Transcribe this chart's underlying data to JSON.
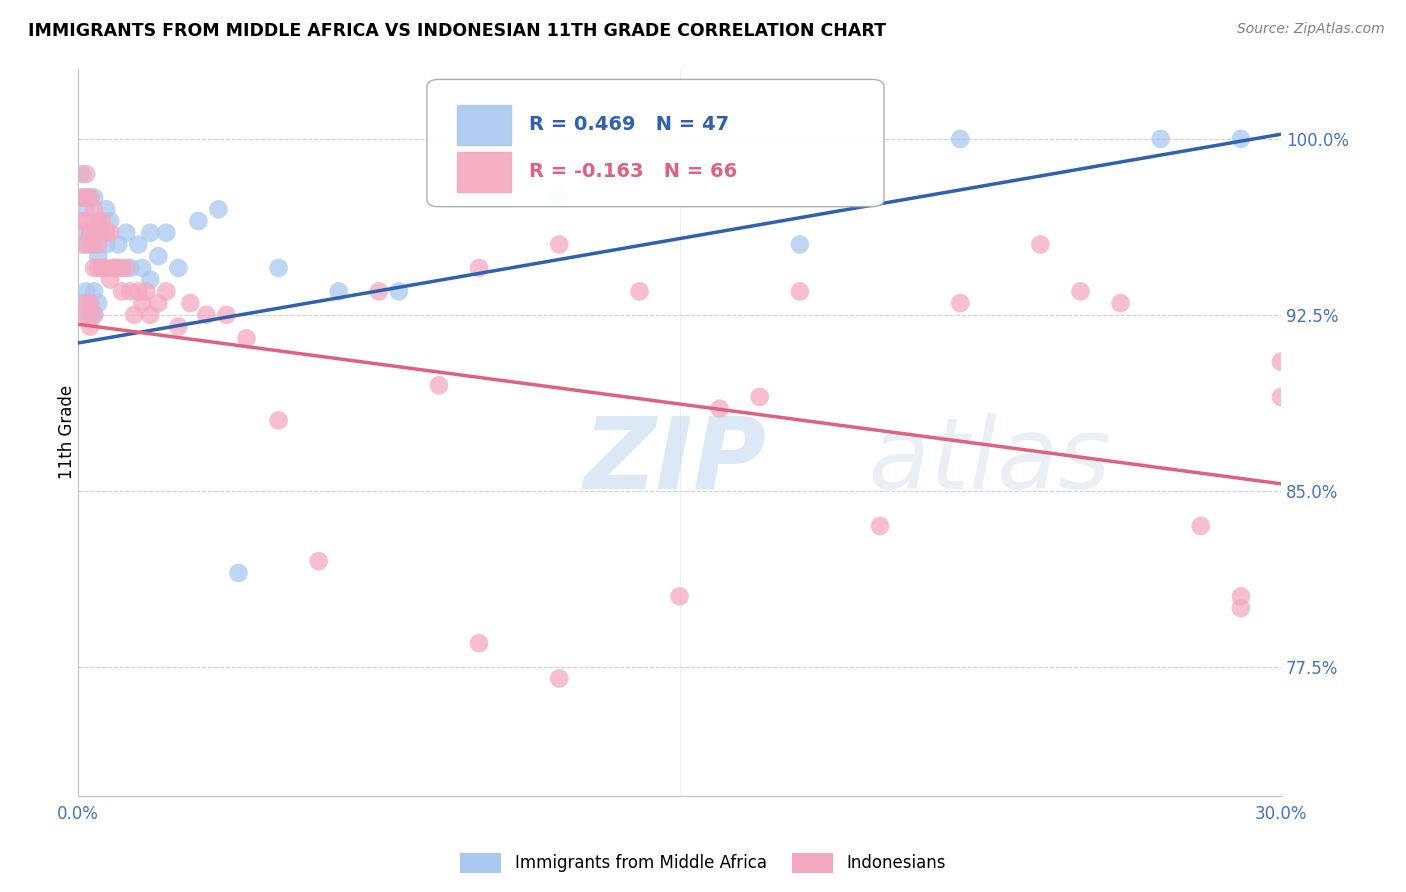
{
  "title": "IMMIGRANTS FROM MIDDLE AFRICA VS INDONESIAN 11TH GRADE CORRELATION CHART",
  "source": "Source: ZipAtlas.com",
  "ylabel": "11th Grade",
  "ytick_labels": [
    "77.5%",
    "85.0%",
    "92.5%",
    "100.0%"
  ],
  "ytick_values": [
    0.775,
    0.85,
    0.925,
    1.0
  ],
  "xtick_labels": [
    "0.0%",
    "30.0%"
  ],
  "xtick_values": [
    0.0,
    0.3
  ],
  "xlim": [
    0.0,
    0.3
  ],
  "ylim": [
    0.72,
    1.03
  ],
  "legend_label1": "Immigrants from Middle Africa",
  "legend_label2": "Indonesians",
  "R1": 0.469,
  "N1": 47,
  "R2": -0.163,
  "N2": 66,
  "color_blue": "#A8C8F0",
  "color_pink": "#F4A8C0",
  "color_blue_line": "#3060B0",
  "color_pink_line": "#E06080",
  "color_axis": "#4472C4",
  "blue_x": [
    0.001,
    0.001,
    0.002,
    0.002,
    0.002,
    0.003,
    0.003,
    0.004,
    0.004,
    0.005,
    0.005,
    0.006,
    0.006,
    0.007,
    0.007,
    0.008,
    0.009,
    0.01,
    0.011,
    0.012,
    0.013,
    0.015,
    0.016,
    0.018,
    0.018,
    0.02,
    0.022,
    0.025,
    0.03,
    0.035,
    0.04,
    0.05,
    0.065,
    0.08,
    0.12,
    0.18,
    0.22,
    0.27,
    0.29,
    0.001,
    0.002,
    0.003,
    0.004,
    0.005,
    0.003,
    0.002,
    0.004
  ],
  "blue_y": [
    0.985,
    0.975,
    0.97,
    0.96,
    0.955,
    0.975,
    0.96,
    0.975,
    0.955,
    0.965,
    0.95,
    0.96,
    0.945,
    0.97,
    0.955,
    0.965,
    0.945,
    0.955,
    0.945,
    0.96,
    0.945,
    0.955,
    0.945,
    0.96,
    0.94,
    0.95,
    0.96,
    0.945,
    0.965,
    0.97,
    0.815,
    0.945,
    0.935,
    0.935,
    0.975,
    0.955,
    1.0,
    1.0,
    1.0,
    0.93,
    0.935,
    0.93,
    0.935,
    0.93,
    0.925,
    0.925,
    0.925
  ],
  "pink_x": [
    0.001,
    0.001,
    0.001,
    0.002,
    0.002,
    0.002,
    0.003,
    0.003,
    0.003,
    0.004,
    0.004,
    0.004,
    0.005,
    0.005,
    0.005,
    0.006,
    0.006,
    0.007,
    0.007,
    0.008,
    0.008,
    0.009,
    0.01,
    0.011,
    0.012,
    0.013,
    0.014,
    0.015,
    0.016,
    0.017,
    0.018,
    0.02,
    0.022,
    0.025,
    0.028,
    0.032,
    0.037,
    0.042,
    0.05,
    0.06,
    0.075,
    0.09,
    0.1,
    0.12,
    0.14,
    0.16,
    0.18,
    0.2,
    0.22,
    0.24,
    0.26,
    0.28,
    0.29,
    0.3,
    0.29,
    0.1,
    0.12,
    0.15,
    0.17,
    0.25,
    0.3,
    0.002,
    0.003,
    0.004,
    0.002,
    0.003
  ],
  "pink_y": [
    0.975,
    0.965,
    0.955,
    0.985,
    0.975,
    0.965,
    0.975,
    0.96,
    0.955,
    0.97,
    0.96,
    0.945,
    0.965,
    0.955,
    0.945,
    0.965,
    0.945,
    0.96,
    0.945,
    0.96,
    0.94,
    0.945,
    0.945,
    0.935,
    0.945,
    0.935,
    0.925,
    0.935,
    0.93,
    0.935,
    0.925,
    0.93,
    0.935,
    0.92,
    0.93,
    0.925,
    0.925,
    0.915,
    0.88,
    0.82,
    0.935,
    0.895,
    0.945,
    0.955,
    0.935,
    0.885,
    0.935,
    0.835,
    0.93,
    0.955,
    0.93,
    0.835,
    0.8,
    0.905,
    0.805,
    0.785,
    0.77,
    0.805,
    0.89,
    0.935,
    0.89,
    0.93,
    0.93,
    0.925,
    0.925,
    0.92
  ]
}
